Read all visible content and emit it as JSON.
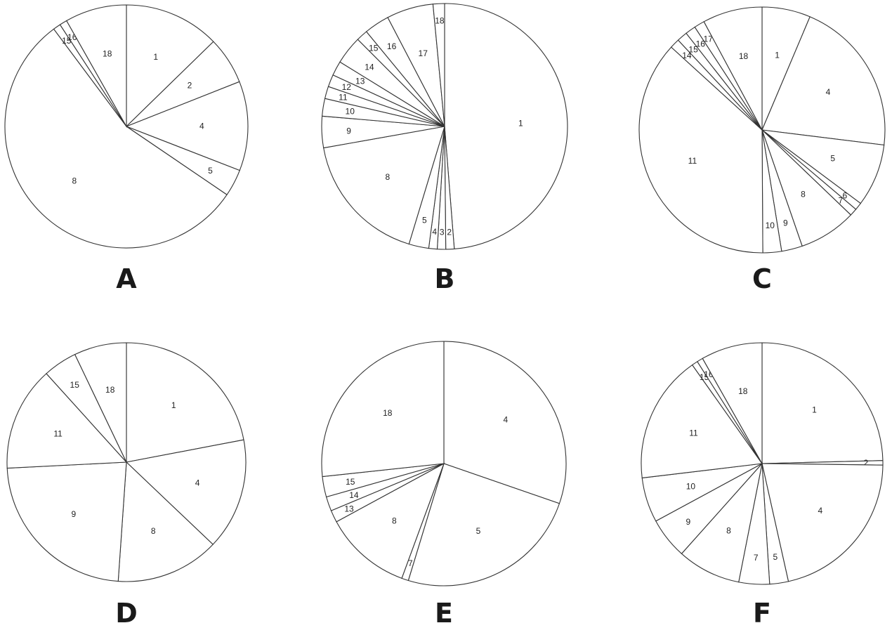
{
  "chart_data": [
    {
      "type": "pie",
      "panel_label": "A",
      "slices": [
        {
          "label": "1",
          "value": 12.7
        },
        {
          "label": "2",
          "value": 6.3
        },
        {
          "label": "4",
          "value": 11.9
        },
        {
          "label": "5",
          "value": 3.6
        },
        {
          "label": "8",
          "value": 55.3
        },
        {
          "label": "15",
          "value": 1.0
        },
        {
          "label": "16",
          "value": 1.0
        },
        {
          "label": "18",
          "value": 8.2
        }
      ]
    },
    {
      "type": "pie",
      "panel_label": "B",
      "slices": [
        {
          "label": "1",
          "value": 48.4
        },
        {
          "label": "2",
          "value": 1.1
        },
        {
          "label": "3",
          "value": 1.1
        },
        {
          "label": "4",
          "value": 1.1
        },
        {
          "label": "5",
          "value": 2.6
        },
        {
          "label": "8",
          "value": 17.4
        },
        {
          "label": "9",
          "value": 4.1
        },
        {
          "label": "10",
          "value": 2.3
        },
        {
          "label": "11",
          "value": 1.6
        },
        {
          "label": "12",
          "value": 1.6
        },
        {
          "label": "13",
          "value": 1.9
        },
        {
          "label": "14",
          "value": 3.7
        },
        {
          "label": "15",
          "value": 1.5
        },
        {
          "label": "16",
          "value": 3.3
        },
        {
          "label": "17",
          "value": 6.1
        },
        {
          "label": "18",
          "value": 1.5
        }
      ]
    },
    {
      "type": "pie",
      "panel_label": "C",
      "slices": [
        {
          "label": "1",
          "value": 6.5
        },
        {
          "label": "4",
          "value": 21.0
        },
        {
          "label": "5",
          "value": 8.4
        },
        {
          "label": "6",
          "value": 1.0
        },
        {
          "label": "7",
          "value": 1.0
        },
        {
          "label": "8",
          "value": 7.7
        },
        {
          "label": "9",
          "value": 2.8
        },
        {
          "label": "10",
          "value": 2.5
        },
        {
          "label": "11",
          "value": 37.6
        },
        {
          "label": "14",
          "value": 1.3
        },
        {
          "label": "15",
          "value": 1.4
        },
        {
          "label": "16",
          "value": 1.4
        },
        {
          "label": "17",
          "value": 1.4
        },
        {
          "label": "18",
          "value": 8.0
        }
      ]
    },
    {
      "type": "pie",
      "panel_label": "D",
      "slices": [
        {
          "label": "1",
          "value": 22.0
        },
        {
          "label": "4",
          "value": 15.1
        },
        {
          "label": "8",
          "value": 14.0
        },
        {
          "label": "9",
          "value": 23.1
        },
        {
          "label": "11",
          "value": 14.1
        },
        {
          "label": "15",
          "value": 4.6
        },
        {
          "label": "18",
          "value": 7.1
        }
      ]
    },
    {
      "type": "pie",
      "panel_label": "E",
      "slices": [
        {
          "label": "4",
          "value": 30.3
        },
        {
          "label": "5",
          "value": 24.4
        },
        {
          "label": "7",
          "value": 0.9
        },
        {
          "label": "8",
          "value": 11.5
        },
        {
          "label": "13",
          "value": 1.6
        },
        {
          "label": "14",
          "value": 1.9
        },
        {
          "label": "15",
          "value": 2.7
        },
        {
          "label": "18",
          "value": 26.7
        }
      ]
    },
    {
      "type": "pie",
      "panel_label": "F",
      "slices": [
        {
          "label": "1",
          "value": 24.6
        },
        {
          "label": "2",
          "value": 0.6
        },
        {
          "label": "4",
          "value": 21.3
        },
        {
          "label": "5",
          "value": 2.5
        },
        {
          "label": "7",
          "value": 4.1
        },
        {
          "label": "8",
          "value": 8.5
        },
        {
          "label": "9",
          "value": 5.5
        },
        {
          "label": "10",
          "value": 6.0
        },
        {
          "label": "11",
          "value": 17.1
        },
        {
          "label": "15",
          "value": 0.8
        },
        {
          "label": "16",
          "value": 0.8
        },
        {
          "label": "18",
          "value": 8.2
        }
      ]
    }
  ]
}
